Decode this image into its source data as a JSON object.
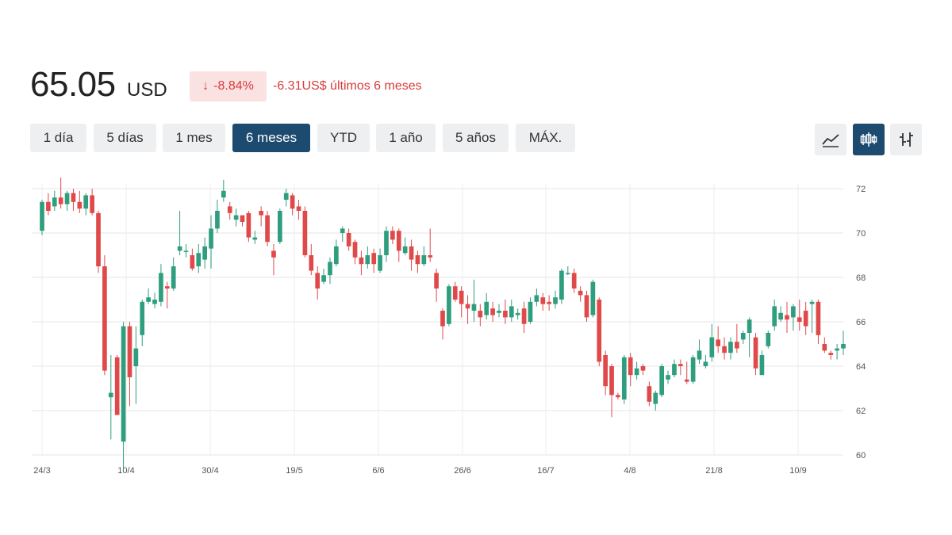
{
  "header": {
    "price": "65.05",
    "currency": "USD",
    "change_arrow": "↓",
    "change_percent": "-8.84%",
    "change_text": "-6.31US$ últimos 6 meses"
  },
  "ranges": [
    {
      "label": "1 día",
      "active": false
    },
    {
      "label": "5 días",
      "active": false
    },
    {
      "label": "1 mes",
      "active": false
    },
    {
      "label": "6 meses",
      "active": true
    },
    {
      "label": "YTD",
      "active": false
    },
    {
      "label": "1 año",
      "active": false
    },
    {
      "label": "5 años",
      "active": false
    },
    {
      "label": "MÁX.",
      "active": false
    }
  ],
  "view_buttons": [
    {
      "icon": "line-chart-icon",
      "active": false
    },
    {
      "icon": "candlestick-icon",
      "active": true
    },
    {
      "icon": "ohlc-bars-icon",
      "active": false
    }
  ],
  "colors": {
    "up": "#2f9e7f",
    "down": "#e0494a",
    "accent": "#1d4b70"
  },
  "chart_data": {
    "type": "candlestick",
    "x_ticks": [
      "24/3",
      "10/4",
      "30/4",
      "19/5",
      "6/6",
      "26/6",
      "16/7",
      "4/8",
      "21/8",
      "10/9"
    ],
    "y_ticks": [
      60,
      62,
      64,
      66,
      68,
      70,
      72
    ],
    "ylim": [
      60,
      72.5
    ],
    "grid": true,
    "candles": [
      [
        70.1,
        71.4,
        71.5,
        69.9
      ],
      [
        71.4,
        71.0,
        71.8,
        70.8
      ],
      [
        71.2,
        71.6,
        71.9,
        71.0
      ],
      [
        71.6,
        71.3,
        72.5,
        71.1
      ],
      [
        71.3,
        71.8,
        71.9,
        71.0
      ],
      [
        71.8,
        71.4,
        72.0,
        71.0
      ],
      [
        71.4,
        71.1,
        71.9,
        70.9
      ],
      [
        71.1,
        71.7,
        71.8,
        70.8
      ],
      [
        71.7,
        70.9,
        72.0,
        70.8
      ],
      [
        70.9,
        68.5,
        71.0,
        68.2
      ],
      [
        68.5,
        63.8,
        69.0,
        63.6
      ],
      [
        62.6,
        62.8,
        64.5,
        60.7
      ],
      [
        64.4,
        61.8,
        64.5,
        61.8
      ],
      [
        60.6,
        65.8,
        66.0,
        59.3
      ],
      [
        65.8,
        63.5,
        66.0,
        62.2
      ],
      [
        64.0,
        64.8,
        65.8,
        62.3
      ],
      [
        65.4,
        66.9,
        67.0,
        64.9
      ],
      [
        66.9,
        67.1,
        67.5,
        66.8
      ],
      [
        66.8,
        67.0,
        67.3,
        66.6
      ],
      [
        66.9,
        68.2,
        68.6,
        66.7
      ],
      [
        67.6,
        67.5,
        67.8,
        66.6
      ],
      [
        67.5,
        68.5,
        68.9,
        67.4
      ],
      [
        69.2,
        69.4,
        71.0,
        69.0
      ],
      [
        69.2,
        69.2,
        69.5,
        68.9
      ],
      [
        69.0,
        68.4,
        69.3,
        68.3
      ],
      [
        68.5,
        69.1,
        69.5,
        68.2
      ],
      [
        68.8,
        69.4,
        69.8,
        68.4
      ],
      [
        69.3,
        70.2,
        70.8,
        68.4
      ],
      [
        70.2,
        71.0,
        71.5,
        70.0
      ],
      [
        71.6,
        71.9,
        72.4,
        71.4
      ],
      [
        71.2,
        70.9,
        71.4,
        70.6
      ],
      [
        70.6,
        70.8,
        71.1,
        70.3
      ],
      [
        70.8,
        70.5,
        70.8,
        70.3
      ],
      [
        70.9,
        69.8,
        71.0,
        69.6
      ],
      [
        69.7,
        69.8,
        70.1,
        69.5
      ],
      [
        71.0,
        70.8,
        71.2,
        70.3
      ],
      [
        70.8,
        69.6,
        71.0,
        69.4
      ],
      [
        69.2,
        68.9,
        69.5,
        68.1
      ],
      [
        69.6,
        71.0,
        71.1,
        69.5
      ],
      [
        71.5,
        71.8,
        72.0,
        71.2
      ],
      [
        71.7,
        71.1,
        71.8,
        70.8
      ],
      [
        71.2,
        71.0,
        71.5,
        70.6
      ],
      [
        71.0,
        69.0,
        71.2,
        68.9
      ],
      [
        69.0,
        68.3,
        69.5,
        68.1
      ],
      [
        68.2,
        67.5,
        68.5,
        67.0
      ],
      [
        67.8,
        68.1,
        68.4,
        67.7
      ],
      [
        68.1,
        68.7,
        68.9,
        67.7
      ],
      [
        68.6,
        69.4,
        69.7,
        68.5
      ],
      [
        70.0,
        70.2,
        70.3,
        69.6
      ],
      [
        70.0,
        69.4,
        70.2,
        69.2
      ],
      [
        69.6,
        68.9,
        69.7,
        68.6
      ],
      [
        68.9,
        68.6,
        69.2,
        68.1
      ],
      [
        68.6,
        69.0,
        69.4,
        68.4
      ],
      [
        69.1,
        68.6,
        69.3,
        68.2
      ],
      [
        68.3,
        69.0,
        69.3,
        68.2
      ],
      [
        69.0,
        70.1,
        70.3,
        68.7
      ],
      [
        70.1,
        69.7,
        70.3,
        69.5
      ],
      [
        70.1,
        69.2,
        70.2,
        68.7
      ],
      [
        69.1,
        69.4,
        69.8,
        69.0
      ],
      [
        69.4,
        68.8,
        69.7,
        68.3
      ],
      [
        69.0,
        68.6,
        69.2,
        68.2
      ],
      [
        68.6,
        69.0,
        69.4,
        68.5
      ],
      [
        69.0,
        68.9,
        70.2,
        68.7
      ],
      [
        68.2,
        67.5,
        68.4,
        66.9
      ],
      [
        66.5,
        65.8,
        66.6,
        65.2
      ],
      [
        65.9,
        67.6,
        67.7,
        65.8
      ],
      [
        67.6,
        67.0,
        67.8,
        66.9
      ],
      [
        67.4,
        66.8,
        67.6,
        66.2
      ],
      [
        66.8,
        66.6,
        67.2,
        65.9
      ],
      [
        66.5,
        66.8,
        67.9,
        66.0
      ],
      [
        66.5,
        66.2,
        66.8,
        65.8
      ],
      [
        66.3,
        66.9,
        67.3,
        66.1
      ],
      [
        66.6,
        66.3,
        66.9,
        66.0
      ],
      [
        66.4,
        66.5,
        66.8,
        66.2
      ],
      [
        66.5,
        66.2,
        67.0,
        65.9
      ],
      [
        66.2,
        66.7,
        67.0,
        66.0
      ],
      [
        66.3,
        66.4,
        66.6,
        66.1
      ],
      [
        66.6,
        65.9,
        66.9,
        65.5
      ],
      [
        66.0,
        66.9,
        67.1,
        65.9
      ],
      [
        66.9,
        67.2,
        67.5,
        66.7
      ],
      [
        67.1,
        66.8,
        67.3,
        66.5
      ],
      [
        66.9,
        66.8,
        67.2,
        66.5
      ],
      [
        66.8,
        67.1,
        67.4,
        66.6
      ],
      [
        67.0,
        68.3,
        68.4,
        66.8
      ],
      [
        68.2,
        68.2,
        68.5,
        68.1
      ],
      [
        68.2,
        67.5,
        68.4,
        67.3
      ],
      [
        67.4,
        67.2,
        67.6,
        66.9
      ],
      [
        67.2,
        66.2,
        67.4,
        66.0
      ],
      [
        66.3,
        67.8,
        67.9,
        66.2
      ],
      [
        67.0,
        64.2,
        67.1,
        64.0
      ],
      [
        64.5,
        63.1,
        64.7,
        62.7
      ],
      [
        64.0,
        62.7,
        64.1,
        61.7
      ],
      [
        62.7,
        62.6,
        62.8,
        62.5
      ],
      [
        62.5,
        64.4,
        64.5,
        62.3
      ],
      [
        64.4,
        63.6,
        64.6,
        63.1
      ],
      [
        63.6,
        63.9,
        64.2,
        63.4
      ],
      [
        64.0,
        63.8,
        64.1,
        63.6
      ],
      [
        63.1,
        62.4,
        63.3,
        62.2
      ],
      [
        62.3,
        62.8,
        62.9,
        62.0
      ],
      [
        62.7,
        64.0,
        64.1,
        62.6
      ],
      [
        63.4,
        63.6,
        63.8,
        63.2
      ],
      [
        63.6,
        64.1,
        64.3,
        63.5
      ],
      [
        64.1,
        64.0,
        64.3,
        63.6
      ],
      [
        63.4,
        63.3,
        64.2,
        63.2
      ],
      [
        63.3,
        64.4,
        64.5,
        63.2
      ],
      [
        64.3,
        64.7,
        65.2,
        64.1
      ],
      [
        64.0,
        64.2,
        64.5,
        63.9
      ],
      [
        64.4,
        65.3,
        65.9,
        64.2
      ],
      [
        65.2,
        64.9,
        65.8,
        64.6
      ],
      [
        64.9,
        64.6,
        65.3,
        64.3
      ],
      [
        64.6,
        65.1,
        65.3,
        64.3
      ],
      [
        65.1,
        64.8,
        65.9,
        64.6
      ],
      [
        65.2,
        65.5,
        65.6,
        65.0
      ],
      [
        65.5,
        66.1,
        66.2,
        64.4
      ],
      [
        65.3,
        63.9,
        65.5,
        63.6
      ],
      [
        63.6,
        64.5,
        64.7,
        63.6
      ],
      [
        64.9,
        65.5,
        65.6,
        64.8
      ],
      [
        65.8,
        66.7,
        67.0,
        65.6
      ],
      [
        66.1,
        66.4,
        66.7,
        66.0
      ],
      [
        66.3,
        66.1,
        66.9,
        65.5
      ],
      [
        66.2,
        66.7,
        66.8,
        65.6
      ],
      [
        66.2,
        66.0,
        67.0,
        65.6
      ],
      [
        66.5,
        65.8,
        66.9,
        65.4
      ],
      [
        66.8,
        66.9,
        67.0,
        65.5
      ],
      [
        66.9,
        65.4,
        67.0,
        65.0
      ],
      [
        65.0,
        64.7,
        65.3,
        64.6
      ],
      [
        64.6,
        64.5,
        64.7,
        64.3
      ],
      [
        64.7,
        64.8,
        65.0,
        64.3
      ],
      [
        64.8,
        65.0,
        65.6,
        64.5
      ]
    ]
  }
}
